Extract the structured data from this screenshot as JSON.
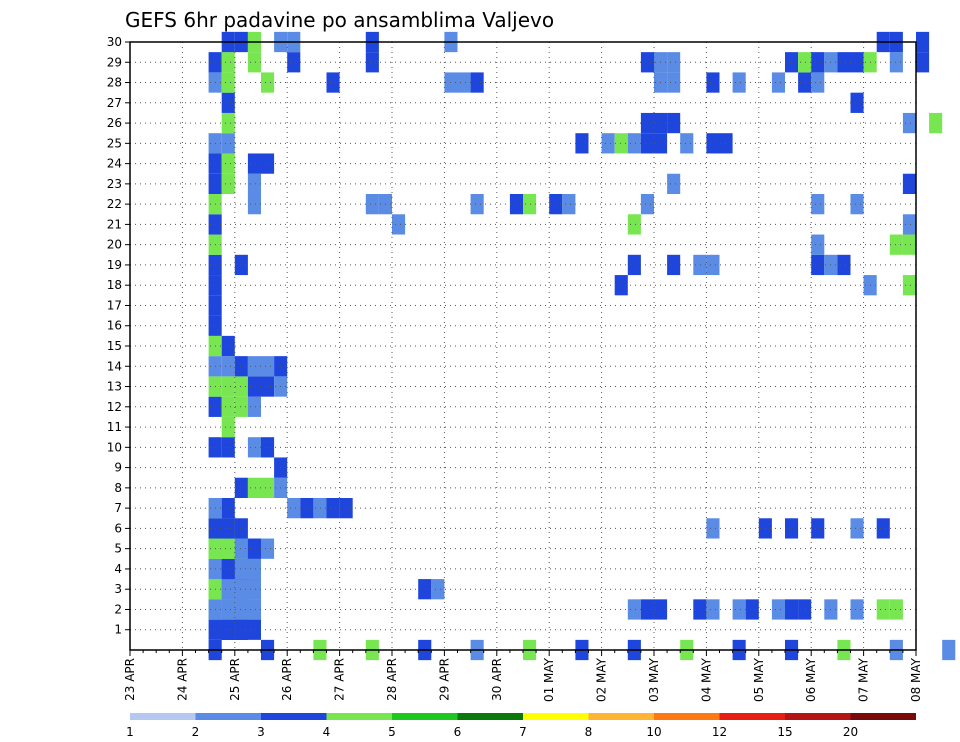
{
  "chart_data": {
    "type": "heatmap",
    "title": "GEFS 6hr padavine po ansamblima Valjevo",
    "xlabel": "",
    "ylabel": "",
    "x_tick_labels": [
      "23 APR",
      "24 APR",
      "25 APR",
      "26 APR",
      "27 APR",
      "28 APR",
      "29 APR",
      "30 APR",
      "01 MAY",
      "02 MAY",
      "03 MAY",
      "04 MAY",
      "05 MAY",
      "06 MAY",
      "07 MAY",
      "08 MAY"
    ],
    "y_tick_labels": [
      "1",
      "2",
      "3",
      "4",
      "5",
      "6",
      "7",
      "8",
      "9",
      "10",
      "11",
      "12",
      "13",
      "14",
      "15",
      "16",
      "17",
      "18",
      "19",
      "20",
      "21",
      "22",
      "23",
      "24",
      "25",
      "26",
      "27",
      "28",
      "29",
      "30"
    ],
    "x_range": [
      0,
      15
    ],
    "y_range": [
      0,
      30
    ],
    "steps_per_day": 4,
    "grid": true,
    "legend_placement": "bottom",
    "legend": {
      "labels": [
        "1",
        "2",
        "3",
        "4",
        "5",
        "6",
        "7",
        "8",
        "10",
        "12",
        "15",
        "20"
      ],
      "colors": [
        "#b4c8f0",
        "#5a8ce6",
        "#1e46dc",
        "#78e650",
        "#1ec81e",
        "#0a780a",
        "#ffff00",
        "#ffb432",
        "#ff7814",
        "#e61e14",
        "#b41414",
        "#780a0a"
      ]
    },
    "cells": [
      [
        0,
        1.5,
        1,
        2
      ],
      [
        0,
        2.5,
        1,
        2
      ],
      [
        0,
        3.5,
        1,
        3
      ],
      [
        0,
        4.5,
        1,
        3
      ],
      [
        0,
        5.5,
        1,
        2
      ],
      [
        0,
        6.5,
        1,
        1
      ],
      [
        0,
        7.5,
        1,
        3
      ],
      [
        0,
        8.5,
        1,
        2
      ],
      [
        0,
        9.5,
        1,
        2
      ],
      [
        0,
        10.5,
        1,
        3
      ],
      [
        0,
        11.5,
        1,
        2
      ],
      [
        0,
        12.5,
        1,
        2
      ],
      [
        0,
        13.5,
        1,
        3
      ],
      [
        0,
        14.5,
        1,
        1
      ],
      [
        0,
        15.5,
        1,
        1
      ],
      [
        1,
        1.75,
        1,
        2
      ],
      [
        1,
        1.75,
        2,
        2
      ],
      [
        1,
        1.5,
        3,
        2
      ],
      [
        1,
        1.75,
        3,
        2
      ],
      [
        2,
        1.5,
        1,
        3
      ],
      [
        2,
        1.5,
        2,
        1
      ],
      [
        2,
        1.75,
        2,
        3
      ],
      [
        2,
        1.75,
        3,
        1
      ],
      [
        2,
        9.5,
        1,
        1
      ],
      [
        2,
        9.75,
        1,
        2
      ],
      [
        2,
        10,
        1,
        2
      ],
      [
        2,
        10.75,
        1,
        2
      ],
      [
        2,
        11,
        1,
        1
      ],
      [
        2,
        11.5,
        1,
        1
      ],
      [
        2,
        11.75,
        1,
        2
      ],
      [
        2,
        12.25,
        1,
        1
      ],
      [
        2,
        12.5,
        1,
        2
      ],
      [
        2,
        12.75,
        1,
        2
      ],
      [
        2,
        13.25,
        1,
        1
      ],
      [
        2,
        13.75,
        1,
        1
      ],
      [
        2,
        14.25,
        1,
        3
      ],
      [
        2,
        14.5,
        1,
        3
      ],
      [
        3,
        1.5,
        1,
        3
      ],
      [
        3,
        1.5,
        2,
        3
      ],
      [
        3,
        1.75,
        2,
        1
      ],
      [
        3,
        1.75,
        3,
        1
      ],
      [
        3,
        2,
        1,
        1
      ],
      [
        3,
        2,
        2,
        1
      ],
      [
        3,
        5.5,
        1,
        2
      ],
      [
        3,
        5.75,
        1,
        1
      ],
      [
        4,
        1.5,
        1,
        1
      ],
      [
        4,
        1.75,
        1,
        2
      ],
      [
        4,
        1.75,
        3,
        2
      ],
      [
        4,
        2,
        1,
        2
      ],
      [
        4,
        2,
        2,
        1
      ],
      [
        5,
        1.5,
        1,
        3
      ],
      [
        5,
        1.5,
        2,
        3
      ],
      [
        5,
        1.75,
        1,
        3
      ],
      [
        5,
        1.75,
        2,
        3
      ],
      [
        5,
        2,
        3,
        1
      ],
      [
        5,
        2.25,
        1,
        2
      ],
      [
        6,
        1.5,
        1,
        3
      ],
      [
        6,
        1.5,
        2,
        2
      ],
      [
        6,
        1.75,
        1,
        2
      ],
      [
        6,
        2,
        1,
        2
      ],
      [
        6,
        11,
        1,
        1
      ],
      [
        6,
        12,
        1,
        2
      ],
      [
        6,
        12.5,
        1,
        2
      ],
      [
        6,
        13,
        1,
        2
      ],
      [
        6,
        13.75,
        1,
        1
      ],
      [
        6,
        14.25,
        1,
        2
      ],
      [
        7,
        1.5,
        1,
        1
      ],
      [
        7,
        1.75,
        1,
        2
      ],
      [
        7,
        3,
        1,
        1
      ],
      [
        7,
        3.25,
        1,
        2
      ],
      [
        7,
        3.5,
        1,
        1
      ],
      [
        7,
        3.75,
        1,
        2
      ],
      [
        7,
        4,
        1,
        2
      ],
      [
        8,
        2,
        1,
        2
      ],
      [
        8,
        2.25,
        1,
        3
      ],
      [
        8,
        2.5,
        1,
        3
      ],
      [
        8,
        2.75,
        1,
        1
      ],
      [
        9,
        2.75,
        1,
        2
      ],
      [
        10,
        1.5,
        1,
        2
      ],
      [
        10,
        1.75,
        1,
        2
      ],
      [
        10,
        2.25,
        1,
        1
      ],
      [
        10,
        2.5,
        1,
        2
      ],
      [
        11,
        1.75,
        1,
        3
      ],
      [
        12,
        1.5,
        1,
        2
      ],
      [
        12,
        1.75,
        1,
        3
      ],
      [
        12,
        2,
        1,
        3
      ],
      [
        12,
        2.25,
        1,
        1
      ],
      [
        13,
        1.5,
        1,
        3
      ],
      [
        13,
        1.75,
        1,
        3
      ],
      [
        13,
        2,
        1,
        3
      ],
      [
        13,
        2.25,
        1,
        2
      ],
      [
        13,
        2.5,
        1,
        2
      ],
      [
        13,
        2.75,
        1,
        1
      ],
      [
        14,
        1.5,
        1,
        1
      ],
      [
        14,
        1.75,
        1,
        1
      ],
      [
        14,
        2,
        1,
        2
      ],
      [
        14,
        2.25,
        1,
        1
      ],
      [
        14,
        2.5,
        1,
        1
      ],
      [
        14,
        2.75,
        1,
        2
      ],
      [
        15,
        1.5,
        1,
        3
      ],
      [
        15,
        1.75,
        1,
        2
      ],
      [
        16,
        1.5,
        1,
        2
      ],
      [
        17,
        1.5,
        1,
        2
      ],
      [
        18,
        1.5,
        1,
        2
      ],
      [
        18,
        9.25,
        1,
        2
      ],
      [
        18,
        14,
        1,
        1
      ],
      [
        18,
        14.75,
        1,
        3
      ],
      [
        19,
        1.5,
        1,
        2
      ],
      [
        19,
        2,
        1,
        2
      ],
      [
        19,
        9.5,
        1,
        2
      ],
      [
        19,
        10.25,
        1,
        2
      ],
      [
        19,
        10.75,
        1,
        1
      ],
      [
        19,
        11,
        1,
        1
      ],
      [
        19,
        13,
        1,
        2
      ],
      [
        19,
        13.25,
        1,
        1
      ],
      [
        19,
        13.5,
        1,
        2
      ],
      [
        20,
        1.5,
        1,
        3
      ],
      [
        20,
        14.5,
        1,
        3
      ],
      [
        20,
        14.75,
        1,
        3
      ],
      [
        20,
        13,
        1,
        1
      ],
      [
        21,
        1.5,
        1,
        2
      ],
      [
        21,
        5,
        1,
        1
      ],
      [
        21,
        14.75,
        1,
        1
      ],
      [
        21,
        9.5,
        1,
        3
      ],
      [
        22,
        1.5,
        1,
        3
      ],
      [
        22,
        2.25,
        1,
        1
      ],
      [
        22,
        4.5,
        1,
        1
      ],
      [
        22,
        4.75,
        1,
        1
      ],
      [
        22,
        6.5,
        1,
        1
      ],
      [
        22,
        7.25,
        1,
        2
      ],
      [
        22,
        7.5,
        1,
        3
      ],
      [
        22,
        8,
        1,
        2
      ],
      [
        22,
        8.25,
        1,
        1
      ],
      [
        22,
        9.75,
        1,
        1
      ],
      [
        22,
        13,
        1,
        1
      ],
      [
        22,
        13.75,
        1,
        1
      ],
      [
        23,
        1.5,
        1,
        2
      ],
      [
        23,
        1.75,
        1,
        3
      ],
      [
        23,
        2.25,
        1,
        1
      ],
      [
        23,
        10.25,
        1,
        1
      ],
      [
        23,
        14.75,
        1,
        2
      ],
      [
        24,
        1.5,
        1,
        2
      ],
      [
        24,
        1.75,
        1,
        3
      ],
      [
        24,
        2.25,
        1,
        2
      ],
      [
        24,
        2.5,
        1,
        2
      ],
      [
        25,
        1.5,
        1,
        1
      ],
      [
        25,
        1.75,
        1,
        1
      ],
      [
        25,
        8.5,
        1,
        2
      ],
      [
        25,
        9,
        1,
        1
      ],
      [
        25,
        9.25,
        1,
        3
      ],
      [
        25,
        9.5,
        1,
        1
      ],
      [
        25,
        9.75,
        1,
        2
      ],
      [
        25,
        10,
        1,
        2
      ],
      [
        25,
        10.5,
        1,
        1
      ],
      [
        25,
        11,
        1,
        2
      ],
      [
        25,
        11.25,
        1,
        2
      ],
      [
        26,
        1.75,
        1,
        3
      ],
      [
        26,
        9.75,
        1,
        2
      ],
      [
        26,
        10,
        1,
        2
      ],
      [
        26,
        10.25,
        1,
        2
      ],
      [
        26,
        14.75,
        1,
        1
      ],
      [
        26,
        15.25,
        1,
        3
      ],
      [
        27,
        1.75,
        1,
        2
      ],
      [
        27,
        13.75,
        1,
        2
      ],
      [
        28,
        1.5,
        1,
        1
      ],
      [
        28,
        1.75,
        1,
        3
      ],
      [
        28,
        2.5,
        1,
        3
      ],
      [
        28,
        3.75,
        1,
        2
      ],
      [
        28,
        6,
        1,
        1
      ],
      [
        28,
        6.25,
        1,
        1
      ],
      [
        28,
        6.5,
        1,
        2
      ],
      [
        28,
        10,
        1,
        1
      ],
      [
        28,
        10.25,
        1,
        1
      ],
      [
        28,
        11,
        1,
        2
      ],
      [
        28,
        11.5,
        1,
        1
      ],
      [
        28,
        12.25,
        1,
        1
      ],
      [
        28,
        12.75,
        1,
        2
      ],
      [
        28,
        13,
        1,
        1
      ],
      [
        29,
        1.5,
        1,
        2
      ],
      [
        29,
        1.75,
        1,
        3
      ],
      [
        29,
        2.25,
        1,
        3
      ],
      [
        29,
        3,
        1,
        2
      ],
      [
        29,
        4.5,
        1,
        2
      ],
      [
        29,
        9.75,
        1,
        2
      ],
      [
        29,
        10,
        1,
        1
      ],
      [
        29,
        10.25,
        1,
        1
      ],
      [
        29,
        12.5,
        1,
        2
      ],
      [
        29,
        12.75,
        1,
        3
      ],
      [
        29,
        13,
        1,
        2
      ],
      [
        29,
        13.25,
        1,
        1
      ],
      [
        29,
        13.5,
        1,
        2
      ],
      [
        29,
        13.75,
        1,
        2
      ],
      [
        29,
        14,
        1,
        3
      ],
      [
        29,
        14.5,
        1,
        1
      ],
      [
        29,
        15,
        1,
        2
      ],
      [
        30,
        1.75,
        1,
        2
      ],
      [
        30,
        2,
        1,
        2
      ],
      [
        30,
        2.25,
        1,
        3
      ],
      [
        30,
        2.75,
        1,
        1
      ],
      [
        30,
        3,
        1,
        1
      ],
      [
        30,
        4.5,
        1,
        2
      ],
      [
        30,
        6,
        1,
        1
      ],
      [
        30,
        14.25,
        1,
        2
      ],
      [
        30,
        14.5,
        1,
        2
      ],
      [
        30,
        15,
        1,
        2
      ]
    ],
    "cells_note": "each cell = [member, day_offset, span_steps, color_index]"
  }
}
